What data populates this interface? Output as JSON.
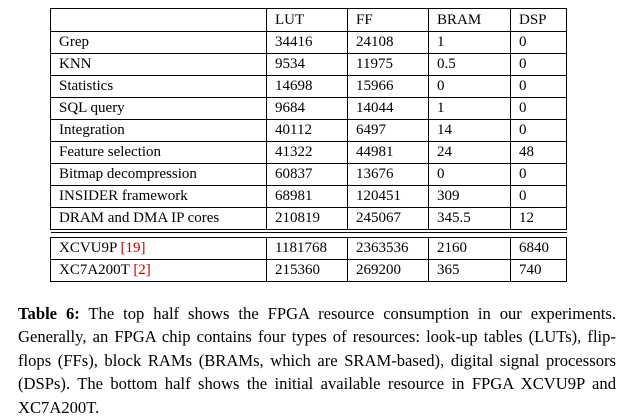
{
  "table": {
    "headers": [
      "",
      "LUT",
      "FF",
      "BRAM",
      "DSP"
    ],
    "top_rows": [
      {
        "name": "Grep",
        "lut": "34416",
        "ff": "24108",
        "bram": "1",
        "dsp": "0"
      },
      {
        "name": "KNN",
        "lut": "9534",
        "ff": "11975",
        "bram": "0.5",
        "dsp": "0"
      },
      {
        "name": "Statistics",
        "lut": "14698",
        "ff": "15966",
        "bram": "0",
        "dsp": "0"
      },
      {
        "name": "SQL query",
        "lut": "9684",
        "ff": "14044",
        "bram": "1",
        "dsp": "0"
      },
      {
        "name": "Integration",
        "lut": "40112",
        "ff": "6497",
        "bram": "14",
        "dsp": "0"
      },
      {
        "name": "Feature selection",
        "lut": "41322",
        "ff": "44981",
        "bram": "24",
        "dsp": "48"
      },
      {
        "name": "Bitmap decompression",
        "lut": "60837",
        "ff": "13676",
        "bram": "0",
        "dsp": "0"
      },
      {
        "name_prefix": "I",
        "name_sc": "NSIDER",
        "name_suffix": " framework",
        "lut": "68981",
        "ff": "120451",
        "bram": "309",
        "dsp": "0"
      },
      {
        "name": "DRAM and DMA IP cores",
        "lut": "210819",
        "ff": "245067",
        "bram": "345.5",
        "dsp": "12"
      }
    ],
    "bottom_rows": [
      {
        "name": "XCVU9P ",
        "ref": "[19]",
        "lut": "1181768",
        "ff": "2363536",
        "bram": "2160",
        "dsp": "6840"
      },
      {
        "name": "XC7A200T ",
        "ref": "[2]",
        "lut": "215360",
        "ff": "269200",
        "bram": "365",
        "dsp": "740"
      }
    ]
  },
  "caption": {
    "label": "Table 6:",
    "text": " The top half shows the FPGA resource consumption in our experiments. Generally, an FPGA chip contains four types of resources: look-up tables (LUTs), flip-flops (FFs), block RAMs (BRAMs, which are SRAM-based), digital signal processors (DSPs). The bottom half shows the initial available resource in FPGA XCVU9P and XC7A200T."
  }
}
